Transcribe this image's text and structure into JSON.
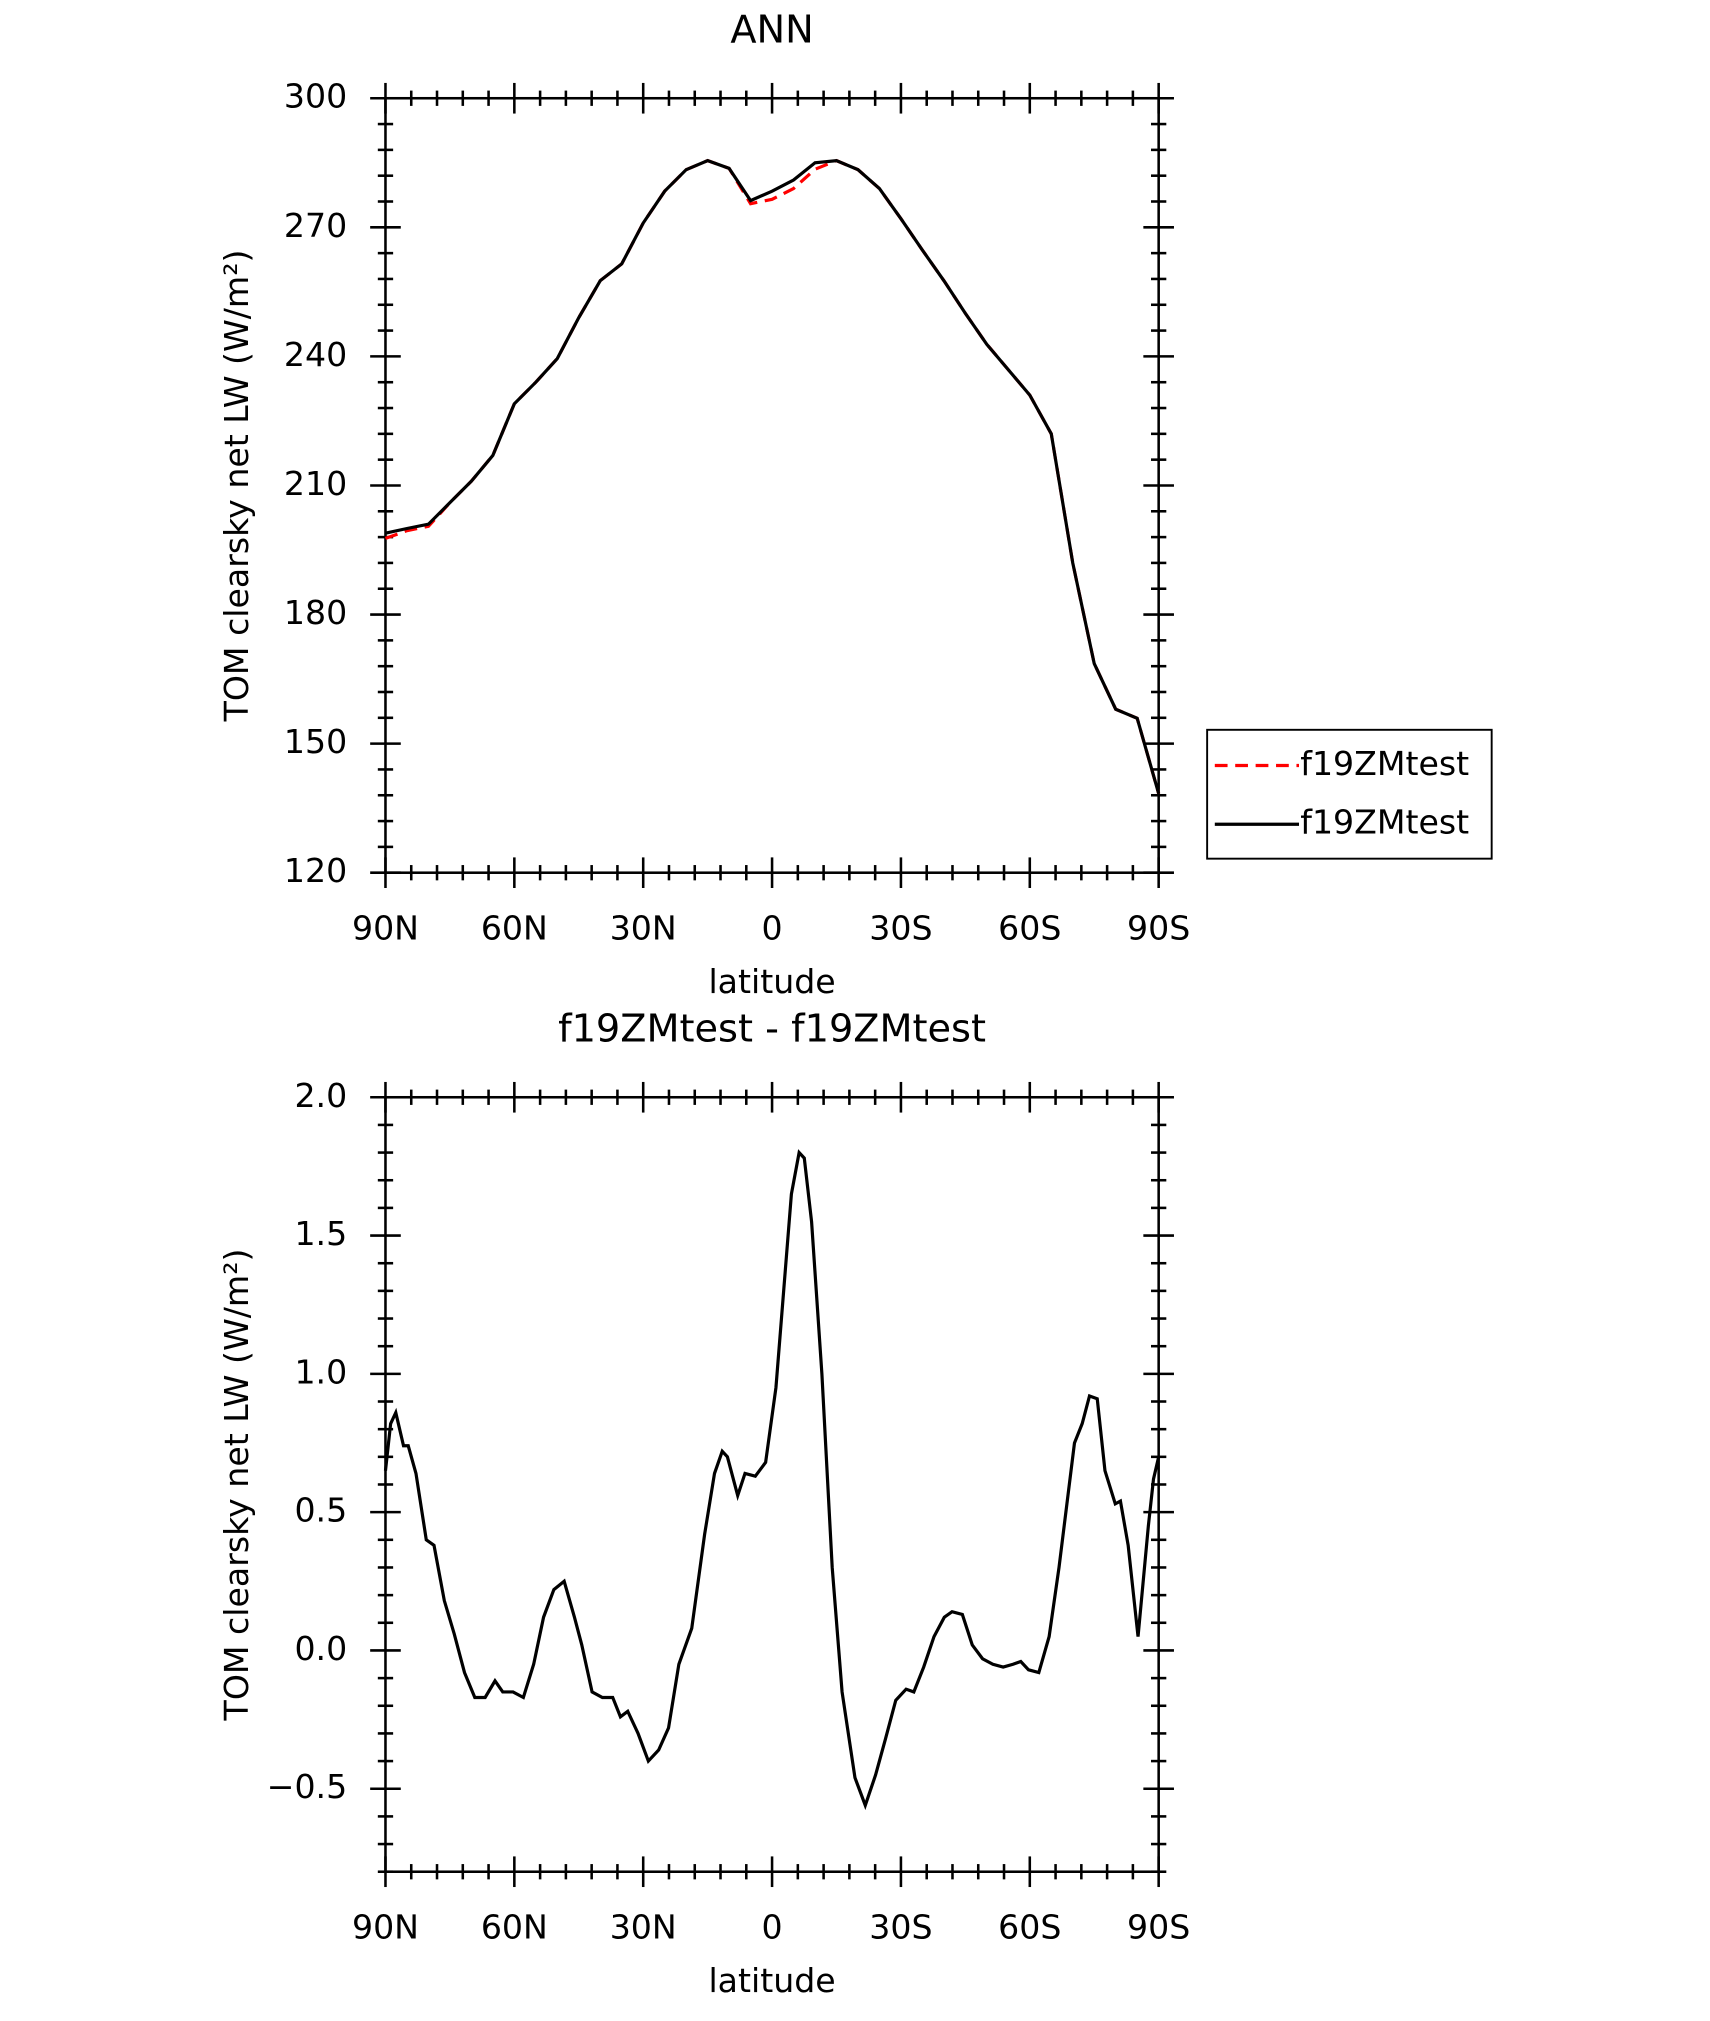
{
  "chart_data": [
    {
      "type": "line",
      "title": "ANN",
      "xlabel": "latitude",
      "ylabel": "TOM clearsky net LW (W/m²)",
      "xlim": [
        90,
        -90
      ],
      "xticks": [
        {
          "value": 90,
          "label": "90N"
        },
        {
          "value": 60,
          "label": "60N"
        },
        {
          "value": 30,
          "label": "30N"
        },
        0,
        {
          "value": -30,
          "label": "30S"
        },
        {
          "value": -60,
          "label": "60S"
        },
        {
          "value": -90,
          "label": "90S"
        }
      ],
      "ylim": [
        120,
        300
      ],
      "yticks": [
        120,
        150,
        180,
        210,
        240,
        270,
        300
      ],
      "legend": "right",
      "x": [
        90,
        85,
        80,
        75,
        70,
        65,
        60,
        55,
        50,
        45,
        40,
        35,
        30,
        25,
        20,
        15,
        10,
        5,
        0,
        -5,
        -10,
        -15,
        -20,
        -25,
        -30,
        -35,
        -40,
        -45,
        -50,
        -55,
        -60,
        -65,
        -70,
        -75,
        -80,
        -85,
        -90
      ],
      "series": [
        {
          "name": "f19ZMtest",
          "color": "#ff0000",
          "linestyle": "dashed",
          "values": [
            197.7,
            199.5,
            200.5,
            206,
            211,
            217,
            229,
            234,
            239.5,
            249,
            257.6,
            261.5,
            271,
            278.4,
            283.4,
            285.5,
            283.7,
            275.5,
            276.5,
            279,
            283.5,
            285.5,
            283.4,
            279,
            272,
            264.7,
            257.6,
            250,
            242.8,
            236.9,
            231,
            222,
            192,
            168.6,
            158,
            155.9,
            138.4
          ]
        },
        {
          "name": "f19ZMtest",
          "color": "#000000",
          "linestyle": "solid",
          "values": [
            198.9,
            200,
            201,
            206,
            211,
            217,
            229,
            234,
            239.5,
            249,
            257.6,
            261.5,
            271,
            278.4,
            283.4,
            285.5,
            283.7,
            276.2,
            278.4,
            281,
            285,
            285.5,
            283.4,
            279,
            272,
            264.7,
            257.6,
            250,
            242.8,
            236.9,
            231,
            222,
            192,
            168.6,
            158,
            155.9,
            138.4
          ]
        }
      ]
    },
    {
      "type": "line",
      "title": "f19ZMtest - f19ZMtest",
      "xlabel": "latitude",
      "ylabel": "TOM clearsky net LW (W/m²)",
      "xlim": [
        90,
        -90
      ],
      "xticks": [
        {
          "value": 90,
          "label": "90N"
        },
        {
          "value": 60,
          "label": "60N"
        },
        {
          "value": 30,
          "label": "30N"
        },
        0,
        {
          "value": -30,
          "label": "30S"
        },
        {
          "value": -60,
          "label": "60S"
        },
        {
          "value": -90,
          "label": "90S"
        }
      ],
      "ylim": [
        -0.8,
        2.0
      ],
      "yticks": [
        {
          "value": -0.5,
          "label": "−0.5"
        },
        {
          "value": 0,
          "label": "0.0"
        },
        0.5,
        {
          "value": 1,
          "label": "1.0"
        },
        1.5,
        {
          "value": 2,
          "label": "2.0"
        }
      ],
      "x": [
        90,
        88.8,
        87.6,
        85.8,
        84.7,
        82.9,
        80.5,
        78.7,
        76.3,
        74.0,
        71.6,
        69.2,
        66.8,
        64.5,
        62.7,
        60.3,
        57.9,
        55.5,
        53.2,
        50.8,
        48.4,
        46.0,
        44.3,
        41.9,
        39.5,
        37.1,
        35.3,
        33.6,
        31.2,
        28.8,
        26.4,
        24.1,
        21.7,
        18.7,
        15.7,
        13.4,
        11.6,
        10.4,
        8.0,
        6.3,
        3.9,
        1.5,
        -0.9,
        -2.7,
        -4.5,
        -6.3,
        -7.5,
        -9.2,
        -11.6,
        -14.0,
        -16.3,
        -19.3,
        -21.7,
        -24.1,
        -26.4,
        -28.8,
        -31.2,
        -33.0,
        -35.3,
        -37.7,
        -40.1,
        -41.9,
        -44.3,
        -46.6,
        -49.0,
        -51.4,
        -53.8,
        -56.1,
        -57.9,
        -59.7,
        -62.1,
        -64.5,
        -66.8,
        -70.4,
        -72.2,
        -73.9,
        -75.7,
        -77.5,
        -79.9,
        -81.1,
        -82.9,
        -85.2,
        -87.6,
        -88.8,
        -90
      ],
      "series": [
        {
          "name": "f19ZMtest - f19ZMtest",
          "color": "#000000",
          "linestyle": "solid",
          "values": [
            0.65,
            0.82,
            0.86,
            0.74,
            0.74,
            0.64,
            0.4,
            0.38,
            0.18,
            0.06,
            -0.08,
            -0.17,
            -0.17,
            -0.11,
            -0.15,
            -0.15,
            -0.17,
            -0.05,
            0.12,
            0.22,
            0.25,
            0.12,
            0.02,
            -0.15,
            -0.17,
            -0.17,
            -0.24,
            -0.22,
            -0.3,
            -0.4,
            -0.36,
            -0.28,
            -0.05,
            0.08,
            0.42,
            0.64,
            0.72,
            0.7,
            0.56,
            0.64,
            0.63,
            0.68,
            0.95,
            1.3,
            1.65,
            1.8,
            1.78,
            1.55,
            1.0,
            0.3,
            -0.15,
            -0.46,
            -0.56,
            -0.45,
            -0.32,
            -0.18,
            -0.14,
            -0.15,
            -0.06,
            0.05,
            0.12,
            0.14,
            0.13,
            0.02,
            -0.03,
            -0.05,
            -0.06,
            -0.05,
            -0.04,
            -0.07,
            -0.08,
            0.05,
            0.3,
            0.75,
            0.82,
            0.92,
            0.91,
            0.65,
            0.53,
            0.54,
            0.38,
            0.05,
            0.45,
            0.62,
            0.7
          ]
        }
      ]
    }
  ]
}
